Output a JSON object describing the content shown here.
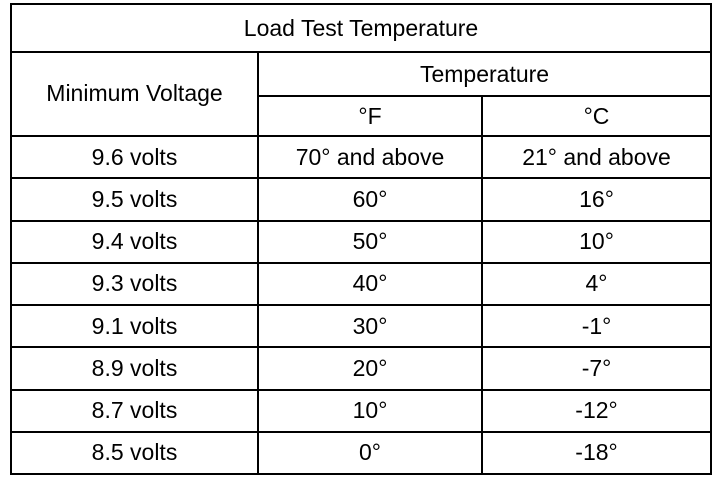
{
  "table": {
    "title": "Load Test Temperature",
    "col_header_voltage": "Minimum Voltage",
    "col_header_temperature": "Temperature",
    "unit_f": "°F",
    "unit_c": "°C",
    "rows": [
      {
        "voltage": "9.6 volts",
        "f": "70° and above",
        "c": "21° and above"
      },
      {
        "voltage": "9.5 volts",
        "f": "60°",
        "c": "16°"
      },
      {
        "voltage": "9.4 volts",
        "f": "50°",
        "c": "10°"
      },
      {
        "voltage": "9.3 volts",
        "f": "40°",
        "c": "4°"
      },
      {
        "voltage": "9.1 volts",
        "f": "30°",
        "c": "-1°"
      },
      {
        "voltage": "8.9 volts",
        "f": "20°",
        "c": "-7°"
      },
      {
        "voltage": "8.7 volts",
        "f": "10°",
        "c": "-12°"
      },
      {
        "voltage": "8.5 volts",
        "f": "0°",
        "c": "-18°"
      }
    ]
  }
}
